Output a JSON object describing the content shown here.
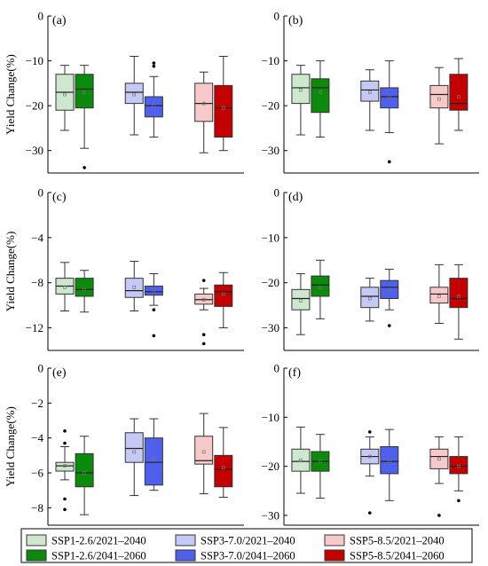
{
  "colors": {
    "ssp126_2040": "#cde8cf",
    "ssp126_2060": "#0b8a0b",
    "ssp370_2040": "#c4c9f5",
    "ssp370_2060": "#4f60ec",
    "ssp585_2040": "#f8c9c9",
    "ssp585_2060": "#c40000"
  },
  "legend": [
    {
      "key": "ssp126_2040",
      "label": "SSP1-2.6/2021–2040"
    },
    {
      "key": "ssp370_2040",
      "label": "SSP3-7.0/2021–2040"
    },
    {
      "key": "ssp585_2040",
      "label": "SSP5-8.5/2021–2040"
    },
    {
      "key": "ssp126_2060",
      "label": "SSP1-2.6/2041–2060"
    },
    {
      "key": "ssp370_2060",
      "label": "SSP3-7.0/2041–2060"
    },
    {
      "key": "ssp585_2060",
      "label": "SSP5-8.5/2041–2060"
    }
  ],
  "chart_data": [
    {
      "type": "box",
      "panel": "(a)",
      "ylabel": "Yield Change(%)",
      "ylim": [
        -35,
        0
      ],
      "yticks": [
        0,
        -10,
        -20,
        -30
      ],
      "series": [
        {
          "key": "ssp126_2040",
          "whisker_low": -25.5,
          "q1": -21,
          "median": -17,
          "q3": -13,
          "whisker_high": -11,
          "mean": -17.5,
          "outliers": []
        },
        {
          "key": "ssp126_2060",
          "whisker_low": -29.5,
          "q1": -20.5,
          "median": -16.3,
          "q3": -13,
          "whisker_high": -11,
          "mean": -17,
          "outliers": [
            -33.8
          ]
        },
        {
          "key": "ssp370_2040",
          "whisker_low": -26.5,
          "q1": -19.5,
          "median": -17,
          "q3": -15,
          "whisker_high": -9,
          "mean": -17.5,
          "outliers": []
        },
        {
          "key": "ssp370_2060",
          "whisker_low": -27,
          "q1": -22.5,
          "median": -20,
          "q3": -18,
          "whisker_high": -13.5,
          "mean": -20,
          "outliers": [
            -10.5,
            -11.2
          ]
        },
        {
          "key": "ssp585_2040",
          "whisker_low": -30.5,
          "q1": -23.5,
          "median": -19.5,
          "q3": -15,
          "whisker_high": -12.5,
          "mean": -19.5,
          "outliers": []
        },
        {
          "key": "ssp585_2060",
          "whisker_low": -30,
          "q1": -27,
          "median": -20.5,
          "q3": -15.5,
          "whisker_high": -9,
          "mean": -20.5,
          "outliers": []
        }
      ]
    },
    {
      "type": "box",
      "panel": "(b)",
      "ylabel": "",
      "ylim": [
        -35,
        0
      ],
      "yticks": [
        0,
        -10,
        -20,
        -30
      ],
      "series": [
        {
          "key": "ssp126_2040",
          "whisker_low": -26.5,
          "q1": -19.5,
          "median": -16,
          "q3": -13,
          "whisker_high": -11,
          "mean": -16.5,
          "outliers": []
        },
        {
          "key": "ssp126_2060",
          "whisker_low": -27,
          "q1": -21.5,
          "median": -16,
          "q3": -14,
          "whisker_high": -10,
          "mean": -17,
          "outliers": []
        },
        {
          "key": "ssp370_2040",
          "whisker_low": -25.5,
          "q1": -19,
          "median": -16.5,
          "q3": -14.5,
          "whisker_high": -12,
          "mean": -17,
          "outliers": []
        },
        {
          "key": "ssp370_2060",
          "whisker_low": -26,
          "q1": -20.5,
          "median": -18,
          "q3": -16,
          "whisker_high": -10,
          "mean": -18,
          "outliers": [
            -32.5
          ]
        },
        {
          "key": "ssp585_2040",
          "whisker_low": -28.5,
          "q1": -20.5,
          "median": -17.5,
          "q3": -15.5,
          "whisker_high": -11.5,
          "mean": -18.5,
          "outliers": []
        },
        {
          "key": "ssp585_2060",
          "whisker_low": -25.5,
          "q1": -21,
          "median": -19.5,
          "q3": -13,
          "whisker_high": -9.5,
          "mean": -18,
          "outliers": []
        }
      ]
    },
    {
      "type": "box",
      "panel": "(c)",
      "ylabel": "Yield Change(%)",
      "ylim": [
        -14,
        0
      ],
      "yticks": [
        0,
        -4,
        -8,
        -12
      ],
      "series": [
        {
          "key": "ssp126_2040",
          "whisker_low": -10.5,
          "q1": -9,
          "median": -8.3,
          "q3": -7.6,
          "whisker_high": -6.2,
          "mean": -8.4,
          "outliers": []
        },
        {
          "key": "ssp126_2060",
          "whisker_low": -10.6,
          "q1": -9.2,
          "median": -8.6,
          "q3": -7.6,
          "whisker_high": -6.9,
          "mean": -8.6,
          "outliers": []
        },
        {
          "key": "ssp370_2040",
          "whisker_low": -10.5,
          "q1": -9.3,
          "median": -8.7,
          "q3": -7.6,
          "whisker_high": -6.1,
          "mean": -8.4,
          "outliers": []
        },
        {
          "key": "ssp370_2060",
          "whisker_low": -10,
          "q1": -9.1,
          "median": -8.8,
          "q3": -8.3,
          "whisker_high": -7.2,
          "mean": -8.8,
          "outliers": [
            -10.4,
            -12.7
          ]
        },
        {
          "key": "ssp585_2040",
          "whisker_low": -10.4,
          "q1": -9.9,
          "median": -9.5,
          "q3": -9,
          "whisker_high": -8.5,
          "mean": -9.5,
          "outliers": [
            -7.8,
            -12.6,
            -13.4
          ]
        },
        {
          "key": "ssp585_2060",
          "whisker_low": -12,
          "q1": -10.1,
          "median": -8.8,
          "q3": -8.2,
          "whisker_high": -7.1,
          "mean": -9,
          "outliers": []
        }
      ]
    },
    {
      "type": "box",
      "panel": "(d)",
      "ylabel": "",
      "ylim": [
        -35,
        0
      ],
      "yticks": [
        0,
        -10,
        -20,
        -30
      ],
      "series": [
        {
          "key": "ssp126_2040",
          "whisker_low": -31.5,
          "q1": -26,
          "median": -23.5,
          "q3": -21.5,
          "whisker_high": -18,
          "mean": -24,
          "outliers": []
        },
        {
          "key": "ssp126_2060",
          "whisker_low": -28,
          "q1": -23,
          "median": -20.5,
          "q3": -18.5,
          "whisker_high": -15,
          "mean": -21,
          "outliers": []
        },
        {
          "key": "ssp370_2040",
          "whisker_low": -28.5,
          "q1": -25.5,
          "median": -23,
          "q3": -21,
          "whisker_high": -19,
          "mean": -23.5,
          "outliers": []
        },
        {
          "key": "ssp370_2060",
          "whisker_low": -26,
          "q1": -23.5,
          "median": -21,
          "q3": -19.5,
          "whisker_high": -17,
          "mean": -21.5,
          "outliers": [
            -29.5
          ]
        },
        {
          "key": "ssp585_2040",
          "whisker_low": -29,
          "q1": -24.5,
          "median": -22.5,
          "q3": -21,
          "whisker_high": -16,
          "mean": -23,
          "outliers": []
        },
        {
          "key": "ssp585_2060",
          "whisker_low": -32.5,
          "q1": -25.5,
          "median": -23.5,
          "q3": -19,
          "whisker_high": -16,
          "mean": -23,
          "outliers": []
        }
      ]
    },
    {
      "type": "box",
      "panel": "(e)",
      "ylabel": "Yield Change(%)",
      "ylim": [
        -9,
        0
      ],
      "yticks": [
        0,
        -2,
        -4,
        -6,
        -8
      ],
      "series": [
        {
          "key": "ssp126_2040",
          "whisker_low": -6.4,
          "q1": -5.9,
          "median": -5.6,
          "q3": -5.4,
          "whisker_high": -4.5,
          "mean": -5.6,
          "outliers": [
            -3.6,
            -4.3,
            -7.5,
            -8.1
          ]
        },
        {
          "key": "ssp126_2060",
          "whisker_low": -8.4,
          "q1": -6.8,
          "median": -6,
          "q3": -4.9,
          "whisker_high": -3.9,
          "mean": -6,
          "outliers": []
        },
        {
          "key": "ssp370_2040",
          "whisker_low": -7.3,
          "q1": -5.4,
          "median": -4.6,
          "q3": -3.7,
          "whisker_high": -2.9,
          "mean": -4.8,
          "outliers": []
        },
        {
          "key": "ssp370_2060",
          "whisker_low": -7,
          "q1": -6.7,
          "median": -5.4,
          "q3": -4,
          "whisker_high": -2.9,
          "mean": -5.2,
          "outliers": []
        },
        {
          "key": "ssp585_2040",
          "whisker_low": -7.2,
          "q1": -5.5,
          "median": -5.3,
          "q3": -3.9,
          "whisker_high": -2.6,
          "mean": -4.8,
          "outliers": []
        },
        {
          "key": "ssp585_2060",
          "whisker_low": -7.4,
          "q1": -6.8,
          "median": -5.8,
          "q3": -5,
          "whisker_high": -3.4,
          "mean": -5.7,
          "outliers": []
        }
      ]
    },
    {
      "type": "box",
      "panel": "(f)",
      "ylabel": "",
      "ylim": [
        -32,
        0
      ],
      "yticks": [
        0,
        -10,
        -20,
        -30
      ],
      "series": [
        {
          "key": "ssp126_2040",
          "whisker_low": -25.5,
          "q1": -21,
          "median": -19,
          "q3": -16.5,
          "whisker_high": -12,
          "mean": -18.8,
          "outliers": []
        },
        {
          "key": "ssp126_2060",
          "whisker_low": -26.5,
          "q1": -21,
          "median": -19,
          "q3": -17,
          "whisker_high": -13.5,
          "mean": -19,
          "outliers": []
        },
        {
          "key": "ssp370_2040",
          "whisker_low": -22,
          "q1": -19.5,
          "median": -18,
          "q3": -16.5,
          "whisker_high": -14,
          "mean": -18,
          "outliers": [
            -13,
            -29.5
          ]
        },
        {
          "key": "ssp370_2060",
          "whisker_low": -27,
          "q1": -21.5,
          "median": -19,
          "q3": -16,
          "whisker_high": -12.5,
          "mean": -19,
          "outliers": []
        },
        {
          "key": "ssp585_2040",
          "whisker_low": -23.5,
          "q1": -20.5,
          "median": -18,
          "q3": -16.5,
          "whisker_high": -14,
          "mean": -18.5,
          "outliers": [
            -30
          ]
        },
        {
          "key": "ssp585_2060",
          "whisker_low": -25,
          "q1": -21.5,
          "median": -20,
          "q3": -18,
          "whisker_high": -14,
          "mean": -20,
          "outliers": [
            -27
          ]
        }
      ]
    }
  ]
}
